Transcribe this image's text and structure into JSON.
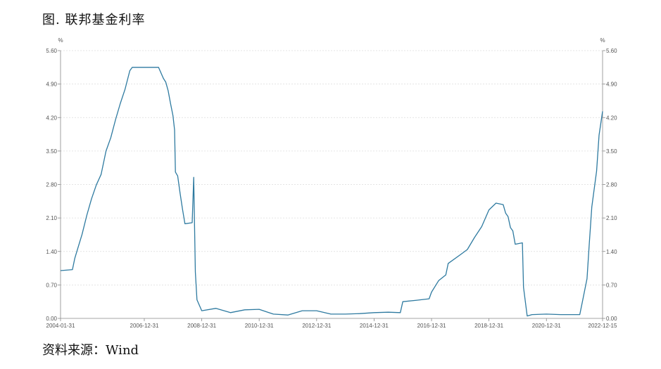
{
  "title": "图. 联邦基金利率",
  "source": "资料来源：Wind",
  "chart_data": {
    "type": "line",
    "title": "联邦基金利率",
    "y_unit_left": "%",
    "y_unit_right": "%",
    "ylim": [
      0,
      5.6
    ],
    "yticks": [
      "0.00",
      "0.70",
      "1.40",
      "2.10",
      "2.80",
      "3.50",
      "4.20",
      "4.90",
      "5.60"
    ],
    "xticks": [
      "2004-01-31",
      "2006-12-31",
      "2008-12-31",
      "2010-12-31",
      "2012-12-31",
      "2014-12-31",
      "2016-12-31",
      "2018-12-31",
      "2020-12-31",
      "2022-12-15"
    ],
    "grid": true,
    "color": "#2e7aa0",
    "series": [
      {
        "values": [
          [
            "2004-01-31",
            1.0
          ],
          [
            "2004-06-30",
            1.02
          ],
          [
            "2004-07-31",
            1.26
          ],
          [
            "2004-08-31",
            1.43
          ],
          [
            "2004-10-31",
            1.76
          ],
          [
            "2004-12-31",
            2.16
          ],
          [
            "2005-02-28",
            2.5
          ],
          [
            "2005-04-30",
            2.79
          ],
          [
            "2005-06-30",
            3.01
          ],
          [
            "2005-08-31",
            3.5
          ],
          [
            "2005-10-31",
            3.78
          ],
          [
            "2005-12-31",
            4.16
          ],
          [
            "2006-02-28",
            4.49
          ],
          [
            "2006-04-30",
            4.79
          ],
          [
            "2006-06-30",
            5.18
          ],
          [
            "2006-07-31",
            5.25
          ],
          [
            "2007-06-30",
            5.25
          ],
          [
            "2007-08-31",
            5.02
          ],
          [
            "2007-09-30",
            4.94
          ],
          [
            "2007-10-31",
            4.76
          ],
          [
            "2007-11-30",
            4.49
          ],
          [
            "2007-12-31",
            4.24
          ],
          [
            "2008-01-20",
            3.94
          ],
          [
            "2008-01-31",
            3.06
          ],
          [
            "2008-02-29",
            2.98
          ],
          [
            "2008-03-31",
            2.61
          ],
          [
            "2008-04-30",
            2.28
          ],
          [
            "2008-05-31",
            1.98
          ],
          [
            "2008-08-31",
            2.0
          ],
          [
            "2008-09-20",
            2.95
          ],
          [
            "2008-10-10",
            0.97
          ],
          [
            "2008-10-31",
            0.39
          ],
          [
            "2008-12-31",
            0.16
          ],
          [
            "2009-06-30",
            0.21
          ],
          [
            "2009-12-31",
            0.12
          ],
          [
            "2010-06-30",
            0.18
          ],
          [
            "2010-12-31",
            0.19
          ],
          [
            "2011-03-31",
            0.14
          ],
          [
            "2011-06-30",
            0.09
          ],
          [
            "2011-12-31",
            0.07
          ],
          [
            "2012-06-30",
            0.16
          ],
          [
            "2012-12-31",
            0.16
          ],
          [
            "2013-06-30",
            0.09
          ],
          [
            "2013-12-31",
            0.09
          ],
          [
            "2014-06-30",
            0.1
          ],
          [
            "2014-12-31",
            0.12
          ],
          [
            "2015-06-30",
            0.13
          ],
          [
            "2015-11-30",
            0.12
          ],
          [
            "2015-12-31",
            0.35
          ],
          [
            "2016-06-30",
            0.38
          ],
          [
            "2016-11-30",
            0.41
          ],
          [
            "2016-12-31",
            0.55
          ],
          [
            "2017-03-31",
            0.79
          ],
          [
            "2017-06-30",
            0.91
          ],
          [
            "2017-07-31",
            1.15
          ],
          [
            "2017-12-31",
            1.33
          ],
          [
            "2018-03-31",
            1.44
          ],
          [
            "2018-06-30",
            1.69
          ],
          [
            "2018-09-30",
            1.92
          ],
          [
            "2018-12-31",
            2.27
          ],
          [
            "2019-03-31",
            2.41
          ],
          [
            "2019-06-30",
            2.38
          ],
          [
            "2019-07-31",
            2.2
          ],
          [
            "2019-08-31",
            2.13
          ],
          [
            "2019-09-30",
            1.9
          ],
          [
            "2019-10-31",
            1.83
          ],
          [
            "2019-11-30",
            1.55
          ],
          [
            "2020-02-29",
            1.58
          ],
          [
            "2020-03-15",
            0.65
          ],
          [
            "2020-04-30",
            0.05
          ],
          [
            "2020-06-30",
            0.08
          ],
          [
            "2020-12-31",
            0.09
          ],
          [
            "2021-06-30",
            0.08
          ],
          [
            "2021-12-31",
            0.08
          ],
          [
            "2022-02-28",
            0.08
          ],
          [
            "2022-03-31",
            0.33
          ],
          [
            "2022-05-31",
            0.83
          ],
          [
            "2022-06-30",
            1.58
          ],
          [
            "2022-07-31",
            2.33
          ],
          [
            "2022-09-30",
            3.08
          ],
          [
            "2022-10-31",
            3.83
          ],
          [
            "2022-12-15",
            4.33
          ]
        ]
      }
    ]
  }
}
